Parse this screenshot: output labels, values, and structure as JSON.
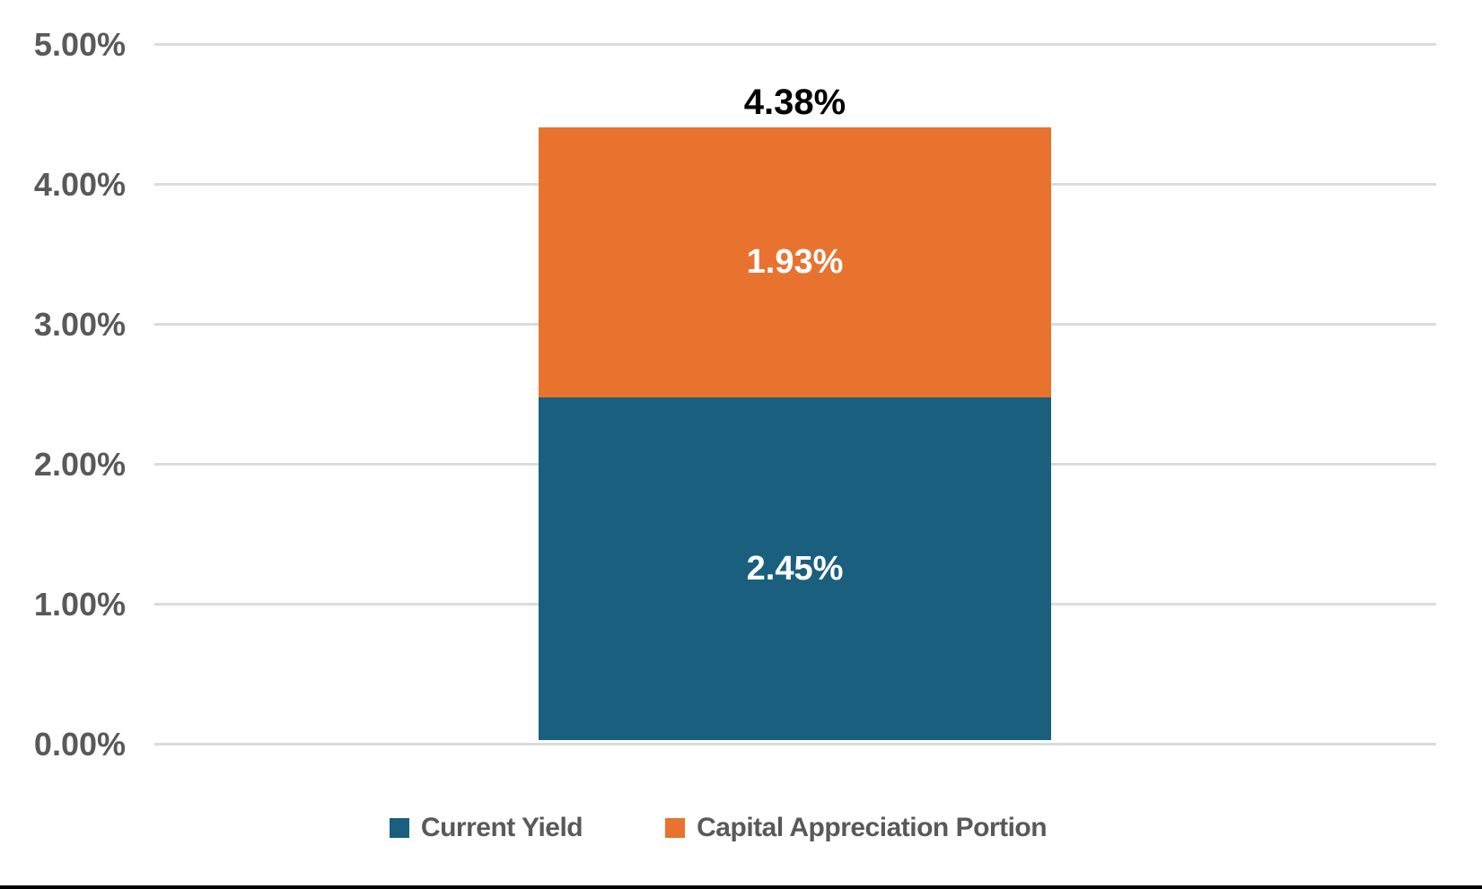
{
  "chart_data": {
    "type": "bar",
    "subtype": "stacked_column",
    "title": "",
    "xlabel": "",
    "ylabel": "",
    "categories": [
      ""
    ],
    "series": [
      {
        "name": "Current Yield",
        "values": [
          2.45
        ],
        "data_label": "2.45%",
        "color": "#1B5F7E"
      },
      {
        "name": "Capital Appreciation Portion",
        "values": [
          1.93
        ],
        "data_label": "1.93%",
        "color": "#E8732F"
      }
    ],
    "total": 4.38,
    "total_label": "4.38%",
    "y_axis": {
      "min": 0,
      "max": 5,
      "step": 1,
      "format": "percent",
      "tick_labels": [
        "0.00%",
        "1.00%",
        "2.00%",
        "3.00%",
        "4.00%",
        "5.00%"
      ]
    },
    "grid": true,
    "gridline_color": "#DBDBDB",
    "axis_text_color": "#595959",
    "segment_label_color": "#FFFFFF",
    "total_label_color": "#000000",
    "legend_position": "bottom",
    "bottom_rule_color": "#000000"
  }
}
